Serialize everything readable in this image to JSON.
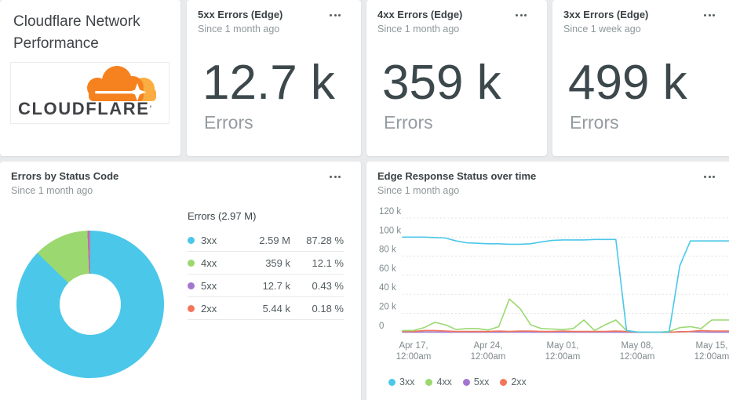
{
  "colors": {
    "background": "#e8eaeb",
    "card": "#ffffff",
    "cyan": "#4ac7e9",
    "green": "#9bd870",
    "purple": "#a276cf",
    "salmon": "#f3765a",
    "cloudflare_orange": "#f6821f",
    "cloudflare_light_orange": "#fbad41"
  },
  "header_card": {
    "title": "Cloudflare Network Performance",
    "logo_text": "CLOUDFLARE",
    "logo_tick": "'"
  },
  "stat_cards": [
    {
      "title": "5xx Errors (Edge)",
      "subtitle": "Since 1 month ago",
      "value": "12.7 k",
      "label": "Errors"
    },
    {
      "title": "4xx Errors (Edge)",
      "subtitle": "Since 1 month ago",
      "value": "359 k",
      "label": "Errors"
    },
    {
      "title": "3xx Errors (Edge)",
      "subtitle": "Since 1 week ago",
      "value": "499 k",
      "label": "Errors"
    }
  ],
  "donut_card": {
    "title": "Errors by Status Code",
    "subtitle": "Since 1 month ago",
    "table_header": "Errors (2.97 M)"
  },
  "timeseries_card": {
    "title": "Edge Response Status over time",
    "subtitle": "Since 1 month ago"
  },
  "chart_data": [
    {
      "type": "pie",
      "subtype": "donut",
      "title": "Errors by Status Code",
      "window": "Since 1 month ago",
      "total_label": "Errors (2.97 M)",
      "slices": [
        {
          "label": "3xx",
          "value": 2590000,
          "display_value": "2.59 M",
          "percent": 87.28,
          "percent_label": "87.28 %",
          "color": "#4ac7e9"
        },
        {
          "label": "4xx",
          "value": 359000,
          "display_value": "359 k",
          "percent": 12.1,
          "percent_label": "12.1 %",
          "color": "#9bd870"
        },
        {
          "label": "5xx",
          "value": 12700,
          "display_value": "12.7 k",
          "percent": 0.43,
          "percent_label": "0.43 %",
          "color": "#a276cf"
        },
        {
          "label": "2xx",
          "value": 5440,
          "display_value": "5.44 k",
          "percent": 0.18,
          "percent_label": "0.18 %",
          "color": "#f3765a"
        }
      ]
    },
    {
      "type": "line",
      "title": "Edge Response Status over time",
      "window": "Since 1 month ago",
      "ylim": [
        0,
        120000
      ],
      "grid": "dotted-horizontal",
      "legend_position": "bottom",
      "y_ticks": [
        {
          "value": 120000,
          "label": "120 k"
        },
        {
          "value": 100000,
          "label": "100 k"
        },
        {
          "value": 80000,
          "label": "80 k"
        },
        {
          "value": 60000,
          "label": "60 k"
        },
        {
          "value": 40000,
          "label": "40 k"
        },
        {
          "value": 20000,
          "label": "20 k"
        },
        {
          "value": 0,
          "label": "0"
        }
      ],
      "x_tick_indices": [
        0,
        7,
        14,
        21,
        28
      ],
      "x_tick_labels": [
        [
          "Apr 17,",
          "12:00am"
        ],
        [
          "Apr 24,",
          "12:00am"
        ],
        [
          "May 01,",
          "12:00am"
        ],
        [
          "May 08,",
          "12:00am"
        ],
        [
          "May 15,",
          "12:00am"
        ]
      ],
      "dates": [
        "Apr 17",
        "Apr 18",
        "Apr 19",
        "Apr 20",
        "Apr 21",
        "Apr 22",
        "Apr 23",
        "Apr 24",
        "Apr 25",
        "Apr 26",
        "Apr 27",
        "Apr 28",
        "Apr 29",
        "Apr 30",
        "May 01",
        "May 02",
        "May 03",
        "May 04",
        "May 05",
        "May 06",
        "May 07",
        "May 08",
        "May 09",
        "May 10",
        "May 11",
        "May 12",
        "May 13",
        "May 14",
        "May 15"
      ],
      "series": [
        {
          "name": "3xx",
          "color": "#4ac7e9",
          "values": [
            100000,
            100000,
            99500,
            99000,
            96000,
            94000,
            93500,
            93000,
            93000,
            92500,
            92500,
            93000,
            95000,
            96500,
            97000,
            97000,
            97000,
            97500,
            97500,
            97500,
            2000,
            400,
            300,
            300,
            400,
            70000,
            96000,
            96000,
            96000
          ]
        },
        {
          "name": "4xx",
          "color": "#9bd870",
          "values": [
            2000,
            5000,
            10500,
            8000,
            3000,
            4000,
            4000,
            2500,
            6000,
            35000,
            25000,
            8000,
            4000,
            3500,
            3000,
            4000,
            13000,
            2000,
            8000,
            13000,
            2000,
            500,
            200,
            200,
            1000,
            5000,
            6000,
            4000,
            13000
          ]
        },
        {
          "name": "5xx",
          "color": "#a276cf",
          "values": [
            300,
            400,
            400,
            300,
            300,
            300,
            300,
            300,
            300,
            400,
            400,
            300,
            300,
            300,
            300,
            300,
            300,
            300,
            300,
            300,
            200,
            100,
            50,
            50,
            100,
            800,
            800,
            400,
            300
          ]
        },
        {
          "name": "2xx",
          "color": "#f3765a",
          "values": [
            1000,
            2000,
            2000,
            1500,
            1000,
            1000,
            1000,
            1000,
            1500,
            1000,
            1500,
            1500,
            1000,
            1000,
            1500,
            1000,
            1000,
            1000,
            1000,
            1500,
            1000,
            300,
            100,
            100,
            200,
            500,
            1000,
            2000,
            1500
          ]
        }
      ]
    }
  ]
}
